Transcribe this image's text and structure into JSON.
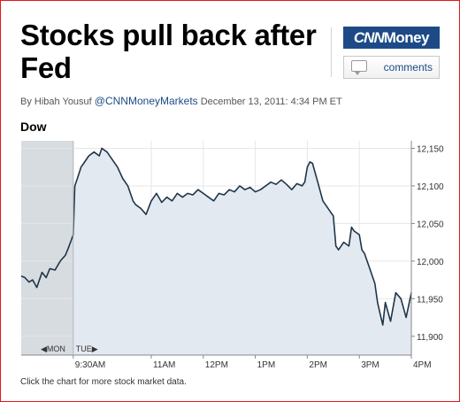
{
  "article": {
    "headline": "Stocks pull back after Fed",
    "byline_prefix": "By Hibah Yousuf",
    "byline_handle": "@CNNMoneyMarkets",
    "byline_date": "December 13, 2011: 4:34 PM ET"
  },
  "brand": {
    "logo_part1": "CNN",
    "logo_part2": "Money"
  },
  "comments_label": "comments",
  "footnote": "Click the chart for more stock market data.",
  "colors": {
    "line": "#1e3548",
    "fill": "#e3e9f0",
    "prev_fill": "#d7dce1",
    "brand": "#1d4a87",
    "frame": "#e2171c"
  },
  "chart_data": {
    "type": "area",
    "title": "Dow",
    "nav_prev": "◀MON",
    "nav_next": "TUE▶",
    "y_range": [
      11875,
      12160
    ],
    "y_ticks": [
      {
        "v": 12150,
        "label": "12,150"
      },
      {
        "v": 12100,
        "label": "12,100"
      },
      {
        "v": 12050,
        "label": "12,050"
      },
      {
        "v": 12000,
        "label": "12,000"
      },
      {
        "v": 11950,
        "label": "11,950"
      },
      {
        "v": 11900,
        "label": "11,900"
      }
    ],
    "x_range": [
      -1.0,
      6.5
    ],
    "x_ticks": [
      {
        "v": 0,
        "label": "9:30AM"
      },
      {
        "v": 1.5,
        "label": "11AM"
      },
      {
        "v": 2.5,
        "label": "12PM"
      },
      {
        "v": 3.5,
        "label": "1PM"
      },
      {
        "v": 4.5,
        "label": "2PM"
      },
      {
        "v": 5.5,
        "label": "3PM"
      },
      {
        "v": 6.5,
        "label": "4PM"
      }
    ],
    "series": [
      {
        "x": [
          -1.0,
          -0.93,
          -0.85,
          -0.78,
          -0.7,
          -0.6,
          -0.52,
          -0.45,
          -0.35,
          -0.25,
          -0.15,
          -0.08,
          0.0,
          0.03,
          0.08,
          0.15,
          0.2,
          0.3,
          0.4,
          0.5,
          0.55,
          0.65,
          0.75,
          0.85,
          0.95,
          1.05,
          1.15,
          1.2,
          1.3,
          1.4,
          1.5,
          1.6,
          1.7,
          1.8,
          1.9,
          2.0,
          2.1,
          2.2,
          2.3,
          2.4,
          2.5,
          2.6,
          2.7,
          2.8,
          2.9,
          3.0,
          3.1,
          3.2,
          3.3,
          3.4,
          3.5,
          3.6,
          3.7,
          3.8,
          3.9,
          4.0,
          4.1,
          4.2,
          4.3,
          4.4,
          4.45,
          4.5,
          4.55,
          4.6,
          4.7,
          4.8,
          4.9,
          5.0,
          5.05,
          5.1,
          5.2,
          5.3,
          5.35,
          5.4,
          5.5,
          5.55,
          5.6,
          5.7,
          5.8,
          5.85,
          5.9,
          5.95,
          6.0,
          6.1,
          6.2,
          6.3,
          6.4,
          6.5
        ],
        "y": [
          11980,
          11978,
          11972,
          11975,
          11965,
          11985,
          11978,
          11990,
          11988,
          12000,
          12008,
          12020,
          12035,
          12100,
          12110,
          12125,
          12130,
          12140,
          12145,
          12140,
          12150,
          12145,
          12135,
          12125,
          12110,
          12100,
          12080,
          12075,
          12070,
          12062,
          12080,
          12090,
          12078,
          12085,
          12080,
          12090,
          12085,
          12090,
          12088,
          12095,
          12090,
          12085,
          12080,
          12090,
          12088,
          12095,
          12092,
          12100,
          12095,
          12098,
          12092,
          12095,
          12100,
          12105,
          12102,
          12108,
          12102,
          12095,
          12103,
          12100,
          12105,
          12125,
          12132,
          12130,
          12105,
          12080,
          12070,
          12060,
          12020,
          12015,
          12025,
          12020,
          12045,
          12040,
          12035,
          12015,
          12010,
          11990,
          11970,
          11945,
          11930,
          11915,
          11945,
          11920,
          11958,
          11950,
          11925,
          11958
        ]
      }
    ]
  }
}
